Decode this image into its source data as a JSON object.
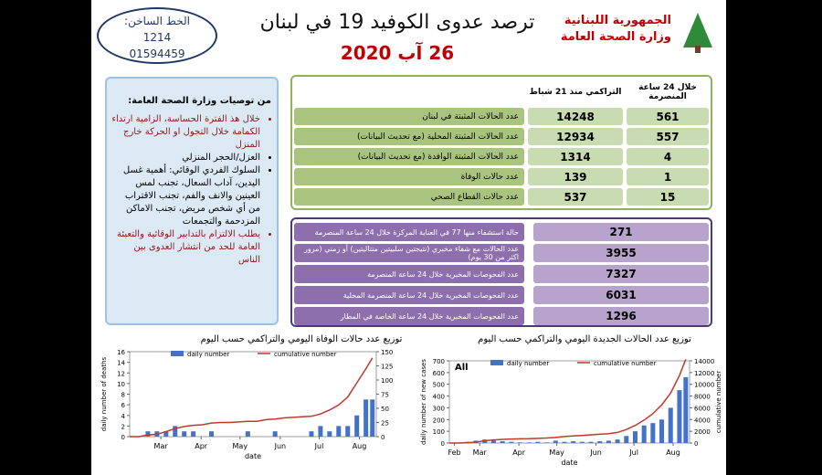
{
  "header": {
    "hotline_label": "الخط الساخن:",
    "hotline_1": "1214",
    "hotline_2": "01594459",
    "title": "ترصد عدوى الكوفيد 19 في لبنان",
    "date": "26 آب 2020",
    "logo_line1": "الجمهورية اللبنانية",
    "logo_line2": "وزارة الصحة العامة"
  },
  "recommendations": {
    "title": "من توصيات وزارة الصحة العامة:",
    "items": [
      "خلال هذ الفترة الحساسة، الزامية ارتداء الكمامة خلال التجول او الحركة خارج المنزل",
      "العزل/الحجر المنزلي",
      "السلوك الفردي الوقائي: أهمية غسل اليدين، آداب السعال، تجنب لمس العينين والانف والفم، تجنب الاقتراب من أي شخص مريض، تجنب الاماكن المزدحمة والتجمعات",
      "يطلب الالتزام بالتدابير الوقائية والتعبئة العامة للحد من انتشار العدوى بين الناس"
    ]
  },
  "table1": {
    "headers": [
      "التراكمي منذ 21 شباط",
      "خلال 24 ساعة المنصرمة"
    ],
    "rows": [
      [
        "عدد الحالات المثبتة في لبنان",
        14248,
        561
      ],
      [
        "عدد الحالات المثبتة المحلية (مع تحديث البيانات)",
        12934,
        557
      ],
      [
        "عدد الحالات المثبتة الوافدة (مع تحديث البيانات)",
        1314,
        4
      ],
      [
        "عدد حالات الوفاة",
        139,
        1
      ],
      [
        "عدد حالات القطاع الصحي",
        537,
        15
      ]
    ]
  },
  "table2": {
    "rows": [
      [
        "حالة استشفاء منها 77 في العناية المركزة خلال 24 ساعة المنصرمة",
        271
      ],
      [
        "عدد الحالات مع شفاء مخبري (نتيجتين سلبيتين متتاليتين) أو زمني (مرور اكثر من 30 يوم)",
        3955
      ],
      [
        "عدد الفحوصات المخبرية خلال 24 ساعة المنصرمة",
        7327
      ],
      [
        "عدد الفحوصات المخبرية خلال 24 ساعة المنصرمة المحلية",
        6031
      ],
      [
        "عدد الفحوصات المخبرية خلال 24 ساعة الخاصة في المطار",
        1296
      ]
    ]
  },
  "charts": [
    {
      "type": "bar_line",
      "title": "توزيع عدد حالات الوفاة اليومي والتراكمي حسب اليوم",
      "xlabel": "date",
      "ylabel": "daily number of deaths",
      "x": [
        0,
        7,
        14,
        21,
        28,
        35,
        42,
        49,
        56,
        63,
        70,
        77,
        84,
        91,
        98,
        105,
        112,
        119,
        126,
        133,
        140,
        147,
        154,
        161,
        168,
        175,
        182,
        187
      ],
      "xlim": [
        0,
        190
      ],
      "xticks": [
        {
          "value": 24,
          "label": "Mar"
        },
        {
          "value": 55,
          "label": "Apr"
        },
        {
          "value": 85,
          "label": "May"
        },
        {
          "value": 116,
          "label": "Jun"
        },
        {
          "value": 146,
          "label": "Jul"
        },
        {
          "value": 177,
          "label": "Aug"
        }
      ],
      "ylim": [
        0,
        16
      ],
      "yticks": [
        0,
        2,
        4,
        6,
        8,
        10,
        12,
        14,
        16
      ],
      "y2lim": [
        0,
        150
      ],
      "y2ticks": [
        0,
        25,
        50,
        75,
        100,
        125,
        150
      ],
      "series": [
        {
          "name": "daily number",
          "color": "#4472c4",
          "values": [
            0,
            0,
            1,
            1,
            1,
            2,
            1,
            1,
            0,
            1,
            0,
            0,
            0,
            1,
            0,
            0,
            1,
            0,
            0,
            0,
            1,
            2,
            1,
            2,
            2,
            4,
            7,
            7
          ]
        },
        {
          "name": "cumulative number",
          "color": "#c0392b",
          "axis": "y2",
          "values": [
            0,
            0,
            3,
            4,
            9,
            14,
            18,
            20,
            21,
            24,
            25,
            25,
            26,
            27,
            27,
            30,
            31,
            33,
            34,
            35,
            36,
            40,
            47,
            56,
            70,
            95,
            120,
            139
          ]
        }
      ]
    },
    {
      "type": "bar_line",
      "title": "توزيع عدد الحالات الجديدة اليومي والتراكمي حسب اليوم",
      "annotation": "All",
      "xlabel": "date",
      "ylabel": "daily number of new cases",
      "y2label": "cumulative number",
      "x": [
        0,
        7,
        14,
        21,
        28,
        35,
        42,
        49,
        56,
        63,
        70,
        77,
        84,
        91,
        98,
        105,
        112,
        119,
        126,
        133,
        140,
        147,
        154,
        161,
        168,
        175,
        182,
        187
      ],
      "xlim": [
        0,
        190
      ],
      "xticks": [
        {
          "value": 4,
          "label": "Feb"
        },
        {
          "value": 24,
          "label": "Mar"
        },
        {
          "value": 55,
          "label": "Apr"
        },
        {
          "value": 85,
          "label": "May"
        },
        {
          "value": 116,
          "label": "Jun"
        },
        {
          "value": 146,
          "label": "Jul"
        },
        {
          "value": 177,
          "label": "Aug"
        }
      ],
      "ylim": [
        0,
        700
      ],
      "yticks": [
        0,
        100,
        200,
        300,
        400,
        500,
        600,
        700
      ],
      "y2lim": [
        0,
        14000
      ],
      "y2ticks": [
        0,
        2000,
        4000,
        6000,
        8000,
        10000,
        12000,
        14000
      ],
      "series": [
        {
          "name": "daily number",
          "color": "#4472c4",
          "values": [
            0,
            1,
            10,
            20,
            30,
            20,
            15,
            10,
            5,
            5,
            10,
            5,
            20,
            10,
            15,
            10,
            10,
            15,
            20,
            30,
            60,
            100,
            150,
            170,
            200,
            300,
            450,
            561
          ]
        },
        {
          "name": "cumulative number",
          "color": "#c0392b",
          "axis": "y2",
          "values": [
            0,
            1,
            50,
            150,
            380,
            520,
            630,
            680,
            710,
            730,
            800,
            850,
            950,
            1100,
            1200,
            1290,
            1400,
            1500,
            1600,
            1800,
            2300,
            3000,
            3900,
            5000,
            6500,
            8500,
            11500,
            14248
          ]
        }
      ]
    }
  ]
}
